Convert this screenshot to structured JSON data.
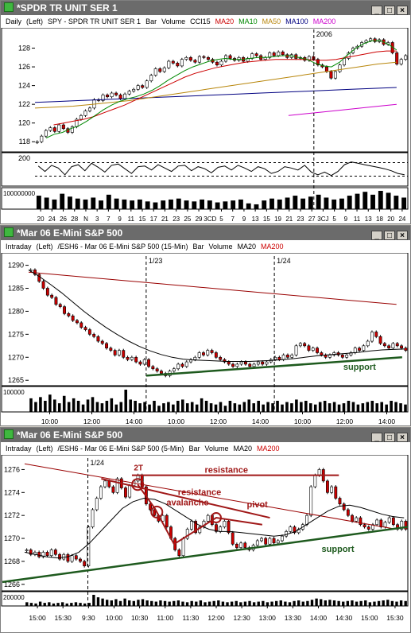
{
  "windows": [
    {
      "title": "*SPDR TR UNIT SER 1",
      "info": [
        {
          "text": "Daily",
          "color": "#000000"
        },
        {
          "text": "(Left)",
          "color": "#000000"
        },
        {
          "text": "SPY - SPDR TR UNIT SER 1",
          "color": "#000000"
        },
        {
          "text": "Bar",
          "color": "#000000"
        },
        {
          "text": "Volume",
          "color": "#000000"
        },
        {
          "text": "CCI15",
          "color": "#000000"
        },
        {
          "text": "MA20",
          "color": "#cc0000"
        },
        {
          "text": "MA10",
          "color": "#008800"
        },
        {
          "text": "MA50",
          "color": "#b8860b"
        },
        {
          "text": "MA100",
          "color": "#000080"
        },
        {
          "text": "MA200",
          "color": "#cc00cc"
        }
      ],
      "marker_labels": [
        "2006"
      ]
    },
    {
      "title": "*Mar 06  E-Mini S&P 500",
      "info": [
        {
          "text": "Intraday",
          "color": "#000000"
        },
        {
          "text": "(Left)",
          "color": "#000000"
        },
        {
          "text": "/ESH6 - Mar 06  E-Mini S&P 500  (15-Min)",
          "color": "#000000"
        },
        {
          "text": "Bar",
          "color": "#000000"
        },
        {
          "text": "Volume",
          "color": "#000000"
        },
        {
          "text": "MA20",
          "color": "#000000"
        },
        {
          "text": "MA200",
          "color": "#cc0000"
        }
      ],
      "marker_labels": [
        "1/23",
        "1/24"
      ]
    },
    {
      "title": "*Mar 06  E-Mini S&P 500",
      "info": [
        {
          "text": "Intraday",
          "color": "#000000"
        },
        {
          "text": "(Left)",
          "color": "#000000"
        },
        {
          "text": "/ESH6 - Mar 06  E-Mini S&P 500  (5-Min)",
          "color": "#000000"
        },
        {
          "text": "Bar",
          "color": "#000000"
        },
        {
          "text": "Volume",
          "color": "#000000"
        },
        {
          "text": "MA20",
          "color": "#000000"
        },
        {
          "text": "MA200",
          "color": "#cc0000"
        }
      ],
      "marker_labels": [
        "1/24"
      ]
    }
  ],
  "chart_data": [
    {
      "type": "candlestick",
      "frequency": "daily",
      "y_ticks": [
        118,
        120,
        122,
        124,
        126,
        128
      ],
      "ylim": [
        117,
        130
      ],
      "x_tick_labels": [
        "20",
        "24",
        "26",
        "28",
        "N",
        "3",
        "7",
        "9",
        "11",
        "15",
        "17",
        "21",
        "23",
        "25",
        "29",
        "3CD",
        "5",
        "7",
        "9",
        "13",
        "15",
        "19",
        "21",
        "23",
        "27",
        "3CJ",
        "5",
        "9",
        "11",
        "13",
        "18",
        "20",
        "24"
      ],
      "closes": [
        118.0,
        118.6,
        119.2,
        119.5,
        119.1,
        119.8,
        119.4,
        119.0,
        119.6,
        120.4,
        120.8,
        121.3,
        121.6,
        122.5,
        122.4,
        123.0,
        122.8,
        123.2,
        123.0,
        122.6,
        123.1,
        123.4,
        123.6,
        124.0,
        123.8,
        124.5,
        125.1,
        125.8,
        125.5,
        125.9,
        126.6,
        126.4,
        126.1,
        126.8,
        127.0,
        126.7,
        126.5,
        127.1,
        127.0,
        126.8,
        126.5,
        126.2,
        126.6,
        127.2,
        126.9,
        126.7,
        127.0,
        126.6,
        126.9,
        127.4,
        127.2,
        126.8,
        127.0,
        127.5,
        127.2,
        127.6,
        127.3,
        127.0,
        127.3,
        126.9,
        127.0,
        126.7,
        127.1,
        126.8,
        126.2,
        126.0,
        125.5,
        124.8,
        125.5,
        126.2,
        126.9,
        127.5,
        128.0,
        128.2,
        128.6,
        128.8,
        129.0,
        128.7,
        128.9,
        128.4,
        128.6,
        127.5,
        126.3,
        126.8,
        127.2
      ],
      "ma10": [
        118.4,
        118.8,
        119.0,
        119.4,
        119.7,
        120.2,
        120.8,
        121.4,
        121.9,
        122.3,
        122.6,
        122.8,
        123.1,
        123.5,
        124.0,
        124.6,
        125.1,
        125.6,
        126.0,
        126.3,
        126.6,
        126.8,
        126.9,
        126.8,
        126.8,
        126.9,
        127.0,
        127.0,
        127.1,
        127.2,
        127.2,
        127.0,
        126.8,
        126.4,
        126.1,
        126.0,
        126.5,
        127.3,
        128.0,
        128.5,
        128.8,
        128.8,
        128.4,
        127.8
      ],
      "ma20": [
        119.8,
        120.0,
        120.2,
        120.4,
        120.7,
        121.1,
        121.5,
        121.9,
        122.4,
        122.9,
        123.4,
        123.9,
        124.4,
        124.9,
        125.3,
        125.6,
        125.9,
        126.1,
        126.3,
        126.5,
        126.6,
        126.7,
        126.8,
        126.8,
        126.8,
        126.8,
        126.7,
        126.7,
        126.8,
        127.0,
        127.2,
        127.4,
        127.6,
        127.7,
        127.7
      ],
      "ma50": [
        121.6,
        121.7,
        121.8,
        122.0,
        122.2,
        122.4,
        122.7,
        123.0,
        123.3,
        123.6,
        123.9,
        124.2,
        124.5,
        124.8,
        125.1,
        125.4,
        125.7,
        126.0,
        126.3,
        126.5
      ],
      "ma100": [
        122.2,
        122.3,
        122.4,
        122.5,
        122.6,
        122.7,
        122.8,
        122.9,
        123.0,
        123.1,
        123.2,
        123.3,
        123.4,
        123.5,
        123.6,
        123.7,
        123.8
      ],
      "ma200": [
        120.8,
        121.0,
        121.2,
        121.4,
        121.6,
        121.8,
        122.0
      ],
      "cci": [
        50,
        -30,
        60,
        20,
        -80,
        40,
        70,
        -20,
        90,
        30,
        -40,
        60,
        80,
        10,
        -60,
        40,
        50,
        -10,
        70,
        20,
        -30,
        50,
        60,
        -20,
        40,
        10,
        -50,
        30,
        50,
        -10,
        60,
        20,
        -30,
        40,
        10,
        -60,
        -30,
        40,
        20,
        -10,
        60,
        -40,
        -80,
        -40,
        -90,
        -30,
        70,
        110,
        90,
        70,
        50,
        30,
        10,
        -20,
        -60,
        -80
      ],
      "volume": [
        70,
        60,
        50,
        80,
        65,
        55,
        50,
        60,
        45,
        75,
        55,
        50,
        45,
        50,
        40,
        35,
        45,
        50,
        55,
        45,
        40,
        50,
        45,
        35,
        40,
        45,
        50,
        30,
        25,
        45,
        55,
        50,
        60,
        70,
        55,
        65,
        75,
        60,
        50,
        55,
        70,
        80,
        90,
        75,
        95,
        85,
        70,
        60
      ],
      "volume_tick_label": "100000000"
    },
    {
      "type": "candlestick",
      "frequency": "15-min",
      "y_ticks": [
        1265,
        1270,
        1275,
        1280,
        1285,
        1290
      ],
      "ylim": [
        1264,
        1292
      ],
      "x_tick_labels": [
        "10:00",
        "12:00",
        "14:00",
        "10:00",
        "12:00",
        "14:00",
        "10:00",
        "12:00",
        "14:00"
      ],
      "closes": [
        1289.0,
        1288.0,
        1286.5,
        1285.0,
        1283.5,
        1283.0,
        1281.5,
        1281.0,
        1279.5,
        1279.0,
        1278.0,
        1277.5,
        1276.5,
        1276.0,
        1275.0,
        1274.5,
        1273.5,
        1273.0,
        1272.0,
        1271.5,
        1270.5,
        1271.5,
        1270.0,
        1269.5,
        1270.0,
        1269.0,
        1268.5,
        1269.5,
        1268.0,
        1267.5,
        1267.0,
        1266.5,
        1266.0,
        1267.0,
        1267.5,
        1268.5,
        1268.0,
        1269.0,
        1269.5,
        1270.0,
        1271.0,
        1270.5,
        1271.5,
        1271.0,
        1270.0,
        1269.5,
        1269.0,
        1268.5,
        1268.0,
        1268.5,
        1269.0,
        1268.5,
        1268.0,
        1268.5,
        1269.0,
        1268.5,
        1269.0,
        1269.5,
        1270.0,
        1269.5,
        1270.5,
        1270.0,
        1270.5,
        1272.5,
        1273.0,
        1272.5,
        1271.5,
        1272.0,
        1271.0,
        1270.5,
        1270.0,
        1270.5,
        1271.0,
        1270.5,
        1270.0,
        1270.5,
        1271.0,
        1272.0,
        1271.5,
        1272.5,
        1273.5,
        1275.5,
        1274.5,
        1273.0,
        1272.5,
        1272.0,
        1273.0,
        1272.5,
        1272.0,
        1271.5
      ],
      "ma20": [
        1289.0,
        1287.5,
        1285.8,
        1284.0,
        1282.0,
        1280.0,
        1278.2,
        1276.5,
        1275.0,
        1273.6,
        1272.4,
        1271.4,
        1270.6,
        1270.0,
        1269.6,
        1269.4,
        1269.3,
        1269.2,
        1269.1,
        1269.1,
        1269.1,
        1269.2,
        1269.3,
        1269.5,
        1269.7,
        1270.0,
        1270.3,
        1270.5,
        1270.7,
        1270.9,
        1271.1,
        1271.4,
        1271.6,
        1271.7,
        1271.8
      ],
      "ma200": [
        1288.5,
        1281.5
      ],
      "volume": [
        55,
        40,
        60,
        45,
        70,
        50,
        35,
        65,
        40,
        55,
        45,
        30,
        50,
        60,
        40,
        35,
        45,
        55,
        30,
        40,
        90,
        50,
        45,
        35,
        40,
        30,
        45,
        25,
        35,
        40,
        30,
        45,
        50,
        35,
        40,
        30,
        55,
        45,
        35,
        30,
        40,
        25,
        45,
        35,
        30,
        40,
        50,
        35,
        45,
        30,
        40,
        35,
        45,
        30,
        40,
        35,
        50,
        40,
        45,
        35,
        30,
        40,
        45,
        35,
        40,
        30,
        35,
        45,
        40,
        30,
        35,
        40,
        45,
        35,
        40,
        30,
        45,
        40,
        35,
        30
      ],
      "volume_tick_label": "100000",
      "annotations": [
        "support"
      ]
    },
    {
      "type": "candlestick",
      "frequency": "5-min",
      "y_ticks": [
        1266,
        1268,
        1270,
        1272,
        1274,
        1276
      ],
      "ylim": [
        1265.5,
        1277
      ],
      "x_tick_labels": [
        "15:00",
        "15:30",
        "9:30",
        "10:00",
        "10:30",
        "11:00",
        "11:30",
        "12:00",
        "12:30",
        "13:00",
        "13:30",
        "14:00",
        "14:30",
        "15:00",
        "15:30"
      ],
      "closes": [
        1269.0,
        1268.6,
        1268.8,
        1268.4,
        1268.8,
        1268.5,
        1269.0,
        1268.6,
        1268.2,
        1268.6,
        1268.0,
        1268.5,
        1268.2,
        1268.0,
        1267.6,
        1271.0,
        1272.5,
        1273.5,
        1274.5,
        1275.0,
        1274.5,
        1274.0,
        1275.2,
        1274.4,
        1273.6,
        1274.6,
        1275.0,
        1275.5,
        1274.5,
        1273.0,
        1272.5,
        1272.0,
        1271.5,
        1272.0,
        1271.0,
        1270.0,
        1269.0,
        1268.5,
        1270.0,
        1270.8,
        1271.5,
        1270.5,
        1271.0,
        1271.5,
        1272.0,
        1271.2,
        1270.6,
        1271.0,
        1271.5,
        1270.5,
        1269.5,
        1269.2,
        1269.6,
        1269.2,
        1269.0,
        1269.4,
        1269.8,
        1270.0,
        1269.5,
        1270.0,
        1269.6,
        1269.8,
        1270.2,
        1270.6,
        1271.0,
        1270.5,
        1270.8,
        1271.2,
        1272.0,
        1274.5,
        1275.5,
        1276.0,
        1275.0,
        1274.0,
        1274.5,
        1273.5,
        1273.0,
        1272.5,
        1272.0,
        1271.5,
        1271.8,
        1271.2,
        1271.0,
        1270.8,
        1271.2,
        1271.6,
        1271.0,
        1271.4,
        1271.8,
        1271.2,
        1270.8,
        1271.5,
        1270.8
      ],
      "ma20": [
        1268.8,
        1268.6,
        1268.4,
        1268.3,
        1268.4,
        1268.8,
        1269.6,
        1270.6,
        1271.6,
        1272.6,
        1273.2,
        1273.5,
        1273.4,
        1273.0,
        1272.4,
        1271.8,
        1271.2,
        1270.8,
        1270.6,
        1270.6,
        1270.5,
        1270.4,
        1270.3,
        1270.2,
        1270.3,
        1270.6,
        1271.2,
        1271.8,
        1272.4,
        1272.8,
        1272.9,
        1272.7,
        1272.4,
        1272.1,
        1271.9,
        1271.8
      ],
      "ma200": [
        1276.5,
        1270.8
      ],
      "volume": [
        30,
        25,
        20,
        35,
        25,
        30,
        20,
        25,
        30,
        20,
        25,
        30,
        25,
        20,
        25,
        90,
        70,
        60,
        50,
        45,
        55,
        40,
        60,
        45,
        40,
        50,
        55,
        45,
        40,
        35,
        45,
        40,
        35,
        40,
        45,
        35,
        30,
        40,
        35,
        45,
        30,
        35,
        40,
        45,
        35,
        30,
        35,
        40,
        30,
        35,
        40,
        30,
        35,
        40,
        30,
        35,
        40,
        45,
        35,
        30,
        40,
        45,
        35,
        40,
        50,
        60,
        55,
        45,
        50,
        45,
        40,
        35,
        40,
        45,
        35,
        40,
        45,
        30,
        35,
        40,
        45,
        50,
        40,
        35,
        45,
        40
      ],
      "volume_tick_label": "200000",
      "annotations": [
        "2T",
        "resistance",
        "resistance",
        "avalanche",
        "pivot",
        "support"
      ]
    }
  ]
}
